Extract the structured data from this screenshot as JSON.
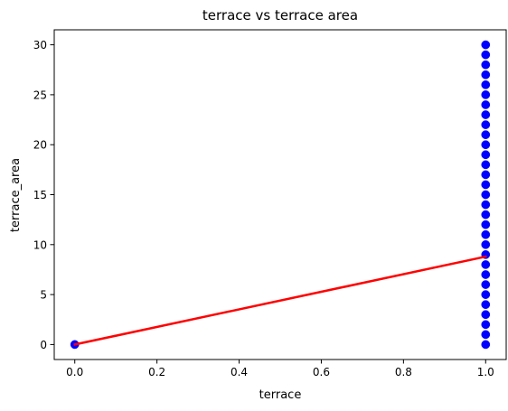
{
  "chart_data": {
    "type": "scatter",
    "title": "terrace vs terrace area",
    "xlabel": "terrace",
    "ylabel": "terrace_area",
    "xlim": [
      -0.05,
      1.05
    ],
    "ylim": [
      -1.5,
      31.5
    ],
    "xticks": [
      0.0,
      0.2,
      0.4,
      0.6,
      0.8,
      1.0
    ],
    "xtick_labels": [
      "0.0",
      "0.2",
      "0.4",
      "0.6",
      "0.8",
      "1.0"
    ],
    "yticks": [
      0,
      5,
      10,
      15,
      20,
      25,
      30
    ],
    "ytick_labels": [
      "0",
      "5",
      "10",
      "15",
      "20",
      "25",
      "30"
    ],
    "grid": false,
    "series": [
      {
        "kind": "scatter",
        "color": "#0000ff",
        "points": [
          [
            0,
            0
          ],
          [
            1,
            0
          ],
          [
            1,
            1
          ],
          [
            1,
            2
          ],
          [
            1,
            3
          ],
          [
            1,
            4
          ],
          [
            1,
            5
          ],
          [
            1,
            6
          ],
          [
            1,
            7
          ],
          [
            1,
            8
          ],
          [
            1,
            9
          ],
          [
            1,
            10
          ],
          [
            1,
            11
          ],
          [
            1,
            12
          ],
          [
            1,
            13
          ],
          [
            1,
            14
          ],
          [
            1,
            15
          ],
          [
            1,
            16
          ],
          [
            1,
            17
          ],
          [
            1,
            18
          ],
          [
            1,
            19
          ],
          [
            1,
            20
          ],
          [
            1,
            21
          ],
          [
            1,
            22
          ],
          [
            1,
            23
          ],
          [
            1,
            24
          ],
          [
            1,
            25
          ],
          [
            1,
            26
          ],
          [
            1,
            27
          ],
          [
            1,
            28
          ],
          [
            1,
            29
          ],
          [
            1,
            30
          ]
        ]
      },
      {
        "kind": "line",
        "color": "#ff0000",
        "points": [
          [
            0,
            0
          ],
          [
            1,
            8.8
          ]
        ]
      }
    ]
  }
}
